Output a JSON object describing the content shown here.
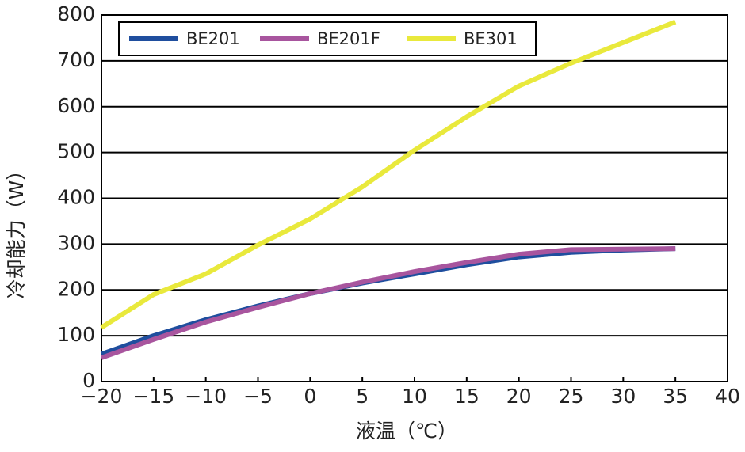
{
  "chart_data": {
    "type": "line",
    "x_label": "液温（℃）",
    "y_label": "冷却能力（W）",
    "x": [
      -20,
      -15,
      -10,
      -5,
      0,
      5,
      10,
      15,
      20,
      25,
      30,
      35
    ],
    "series": [
      {
        "name": "BE201",
        "color": "#1f4e9e",
        "values": [
          60,
          100,
          135,
          165,
          192,
          215,
          235,
          255,
          272,
          282,
          287,
          290
        ]
      },
      {
        "name": "BE201F",
        "color": "#a8559e",
        "values": [
          52,
          92,
          130,
          162,
          192,
          217,
          240,
          260,
          278,
          288,
          289,
          290
        ]
      },
      {
        "name": "BE301",
        "color": "#e9e93c",
        "values": [
          118,
          190,
          235,
          298,
          355,
          425,
          505,
          578,
          645,
          695,
          740,
          785
        ]
      }
    ],
    "xlim": [
      -20,
      40
    ],
    "xticks": [
      {
        "value": -20,
        "label": "−20"
      },
      {
        "value": -15,
        "label": "−15"
      },
      {
        "value": -10,
        "label": "−10"
      },
      {
        "value": -5,
        "label": "−5"
      },
      0,
      5,
      10,
      15,
      20,
      25,
      30,
      35,
      40
    ],
    "ylim": [
      0,
      800
    ],
    "yticks": [
      0,
      100,
      200,
      300,
      400,
      500,
      600,
      700,
      800
    ],
    "grid": true
  }
}
